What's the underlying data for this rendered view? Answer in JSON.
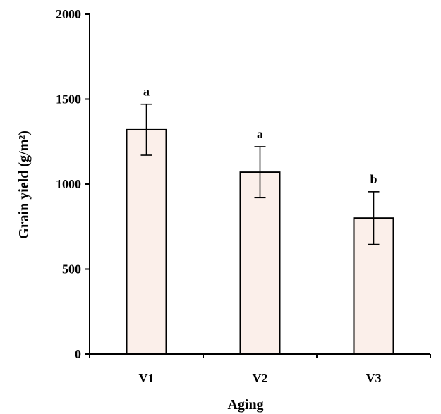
{
  "chart_data": {
    "type": "bar",
    "categories": [
      "V1",
      "V2",
      "V3"
    ],
    "values": [
      1320,
      1070,
      800
    ],
    "errors": [
      150,
      150,
      155
    ],
    "significance": [
      "a",
      "a",
      "b"
    ],
    "xlabel": "Aging",
    "ylabel": "Grain yield (g/m²)",
    "ylim": [
      0,
      2000
    ],
    "yticks": [
      0,
      500,
      1000,
      1500,
      2000
    ],
    "grid": false,
    "colors": {
      "bar_fill": "#fbefea",
      "bar_stroke": "#000000"
    }
  }
}
